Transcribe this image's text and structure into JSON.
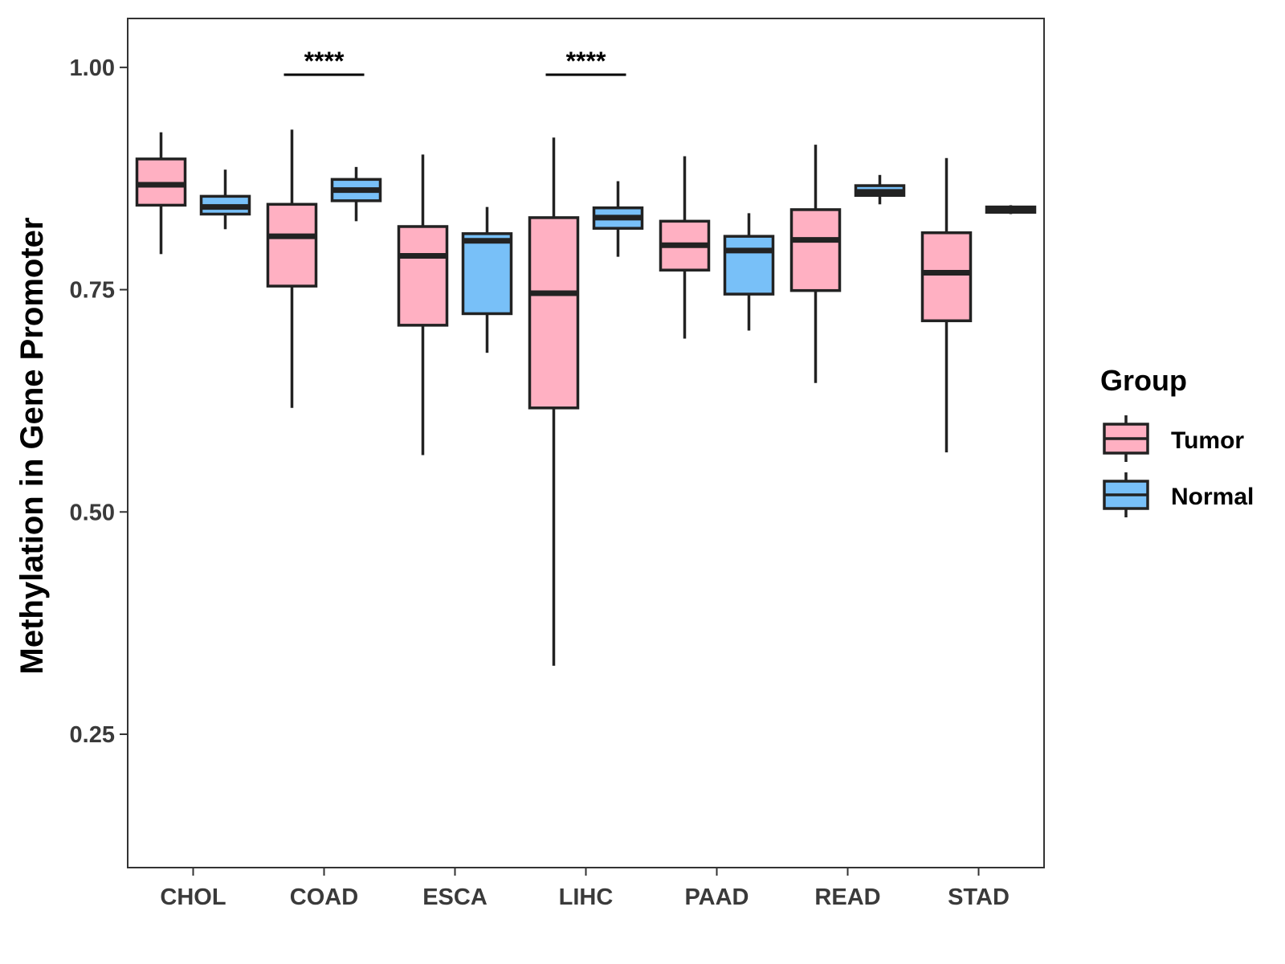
{
  "colors": {
    "tumor": "#FFB0C2",
    "normal": "#78C0F8",
    "stroke": "#222222",
    "axis": "#333333"
  },
  "chart_data": {
    "type": "boxplot",
    "title": "",
    "xlabel": "",
    "ylabel": "Methylation in Gene Promoter",
    "ylim": [
      0.1,
      1.055
    ],
    "yticks": [
      0.25,
      0.5,
      0.75,
      1.0
    ],
    "ytick_labels": [
      "0.25",
      "0.50",
      "0.75",
      "1.00"
    ],
    "grid": false,
    "legend": {
      "title": "Group",
      "position": "right",
      "entries": [
        "Tumor",
        "Normal"
      ]
    },
    "categories": [
      "CHOL",
      "COAD",
      "ESCA",
      "LIHC",
      "PAAD",
      "READ",
      "STAD"
    ],
    "series": [
      {
        "name": "Tumor",
        "color": "#FFB0C2",
        "boxes": [
          {
            "min": 0.79,
            "q1": 0.845,
            "median": 0.868,
            "q3": 0.897,
            "max": 0.927
          },
          {
            "min": 0.617,
            "q1": 0.754,
            "median": 0.81,
            "q3": 0.846,
            "max": 0.93
          },
          {
            "min": 0.564,
            "q1": 0.71,
            "median": 0.788,
            "q3": 0.821,
            "max": 0.902
          },
          {
            "min": 0.327,
            "q1": 0.617,
            "median": 0.746,
            "q3": 0.831,
            "max": 0.921
          },
          {
            "min": 0.695,
            "q1": 0.772,
            "median": 0.8,
            "q3": 0.827,
            "max": 0.9
          },
          {
            "min": 0.645,
            "q1": 0.749,
            "median": 0.806,
            "q3": 0.84,
            "max": 0.913
          },
          {
            "min": 0.567,
            "q1": 0.715,
            "median": 0.769,
            "q3": 0.814,
            "max": 0.898
          }
        ]
      },
      {
        "name": "Normal",
        "color": "#78C0F8",
        "boxes": [
          {
            "min": 0.818,
            "q1": 0.835,
            "median": 0.843,
            "q3": 0.855,
            "max": 0.885
          },
          {
            "min": 0.827,
            "q1": 0.85,
            "median": 0.862,
            "q3": 0.874,
            "max": 0.888
          },
          {
            "min": 0.679,
            "q1": 0.723,
            "median": 0.805,
            "q3": 0.813,
            "max": 0.843
          },
          {
            "min": 0.787,
            "q1": 0.819,
            "median": 0.831,
            "q3": 0.842,
            "max": 0.872
          },
          {
            "min": 0.704,
            "q1": 0.745,
            "median": 0.794,
            "q3": 0.81,
            "max": 0.836
          },
          {
            "min": 0.846,
            "q1": 0.856,
            "median": 0.86,
            "q3": 0.867,
            "max": 0.879
          },
          {
            "min": 0.835,
            "q1": 0.837,
            "median": 0.84,
            "q3": 0.843,
            "max": 0.845
          }
        ]
      }
    ],
    "annotations": [
      {
        "category": "COAD",
        "text": "****"
      },
      {
        "category": "LIHC",
        "text": "****"
      }
    ]
  }
}
